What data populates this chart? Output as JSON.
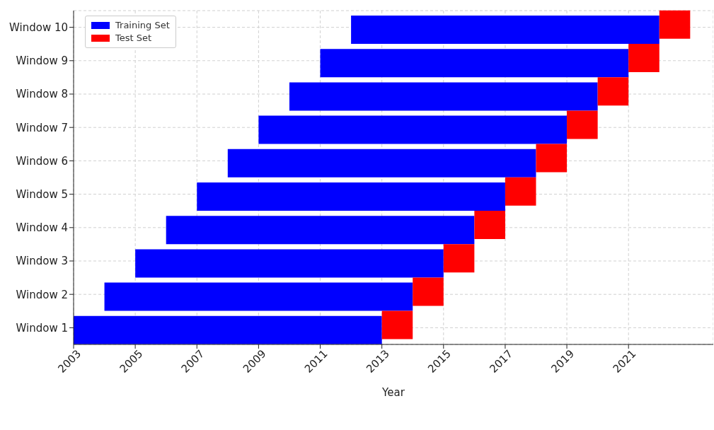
{
  "chart_data": {
    "type": "bar",
    "orientation": "horizontal",
    "xlabel": "Year",
    "categories": [
      "Window 10",
      "Window 9",
      "Window 8",
      "Window 7",
      "Window 6",
      "Window 5",
      "Window 4",
      "Window 3",
      "Window 2",
      "Window 1"
    ],
    "series": [
      {
        "name": "Training Set",
        "color": "#0000ff",
        "base": [
          2012,
          2011,
          2010,
          2009,
          2008,
          2007,
          2006,
          2005,
          2004,
          2003
        ],
        "values": [
          10,
          10,
          10,
          10,
          10,
          10,
          10,
          10,
          10,
          10
        ]
      },
      {
        "name": "Test Set",
        "color": "#ff0000",
        "base": [
          2022,
          2021,
          2020,
          2019,
          2018,
          2017,
          2016,
          2015,
          2014,
          2013
        ],
        "values": [
          1,
          1,
          1,
          1,
          1,
          1,
          1,
          1,
          1,
          1
        ]
      }
    ],
    "xlim": [
      2003,
      2023.75
    ],
    "xticks": [
      2003,
      2005,
      2007,
      2009,
      2011,
      2013,
      2015,
      2017,
      2019,
      2021
    ],
    "grid": true,
    "legend": "top left"
  }
}
